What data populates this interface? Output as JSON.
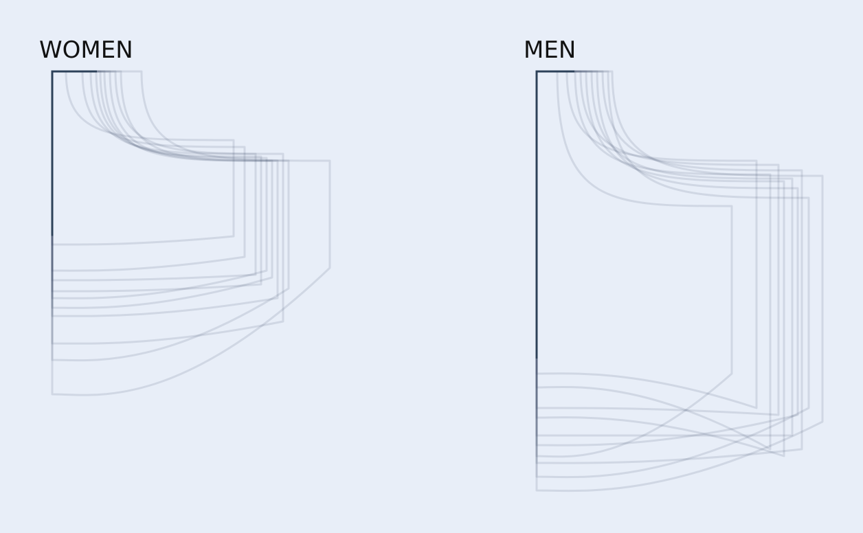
{
  "chart_data": [
    {
      "type": "pocket-outline",
      "title": "WOMEN",
      "color": "#2d4159",
      "pockets": [
        {
          "opening": 1.0,
          "width": 13.2,
          "curve_depth": 5.0,
          "right_depth": 12.0,
          "left_depth": 12.6
        },
        {
          "opening": 2.2,
          "width": 14.0,
          "curve_depth": 5.5,
          "right_depth": 13.5,
          "left_depth": 14.5
        },
        {
          "opening": 2.8,
          "width": 14.8,
          "curve_depth": 6.0,
          "right_depth": 14.8,
          "left_depth": 15.2
        },
        {
          "opening": 3.2,
          "width": 15.2,
          "curve_depth": 6.2,
          "right_depth": 15.5,
          "left_depth": 16.0
        },
        {
          "opening": 3.5,
          "width": 15.6,
          "curve_depth": 6.3,
          "right_depth": 14.5,
          "left_depth": 16.5
        },
        {
          "opening": 3.8,
          "width": 16.0,
          "curve_depth": 6.5,
          "right_depth": 15.0,
          "left_depth": 17.2
        },
        {
          "opening": 4.2,
          "width": 16.4,
          "curve_depth": 6.5,
          "right_depth": 16.5,
          "left_depth": 17.8
        },
        {
          "opening": 4.6,
          "width": 16.8,
          "curve_depth": 6.0,
          "right_depth": 18.2,
          "left_depth": 19.8
        },
        {
          "opening": 5.0,
          "width": 17.2,
          "curve_depth": 6.5,
          "right_depth": 15.8,
          "left_depth": 21.0
        },
        {
          "opening": 6.5,
          "width": 20.2,
          "curve_depth": 6.5,
          "right_depth": 14.3,
          "left_depth": 23.5
        }
      ]
    },
    {
      "type": "pocket-outline",
      "title": "MEN",
      "color": "#2d4159",
      "pockets": [
        {
          "opening": 1.5,
          "width": 14.2,
          "curve_depth": 9.8,
          "right_depth": 22.0,
          "left_depth": 28.0
        },
        {
          "opening": 2.2,
          "width": 16.0,
          "curve_depth": 6.5,
          "right_depth": 24.5,
          "left_depth": 22.0
        },
        {
          "opening": 2.8,
          "width": 17.0,
          "curve_depth": 7.5,
          "right_depth": 27.5,
          "left_depth": 23.0
        },
        {
          "opening": 3.2,
          "width": 17.6,
          "curve_depth": 6.8,
          "right_depth": 25.0,
          "left_depth": 24.5
        },
        {
          "opening": 3.6,
          "width": 18.0,
          "curve_depth": 8.0,
          "right_depth": 28.0,
          "left_depth": 25.2
        },
        {
          "opening": 4.0,
          "width": 18.6,
          "curve_depth": 7.8,
          "right_depth": 26.5,
          "left_depth": 26.5
        },
        {
          "opening": 4.4,
          "width": 19.0,
          "curve_depth": 8.5,
          "right_depth": 25.0,
          "left_depth": 27.2
        },
        {
          "opening": 4.8,
          "width": 19.3,
          "curve_depth": 7.2,
          "right_depth": 27.5,
          "left_depth": 28.5
        },
        {
          "opening": 5.2,
          "width": 19.8,
          "curve_depth": 9.2,
          "right_depth": 24.5,
          "left_depth": 29.5
        },
        {
          "opening": 5.5,
          "width": 20.8,
          "curve_depth": 7.6,
          "right_depth": 25.5,
          "left_depth": 30.5
        }
      ]
    }
  ]
}
